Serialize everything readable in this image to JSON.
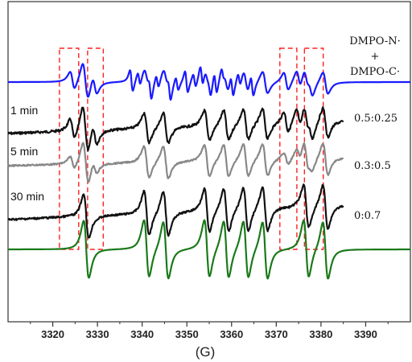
{
  "chart_data": {
    "type": "line",
    "title": "",
    "xlabel": "(G)",
    "ylabel": "",
    "xlim": [
      3310,
      3400
    ],
    "x_ticks": [
      3320,
      3330,
      3340,
      3350,
      3360,
      3370,
      3380,
      3390
    ],
    "grid": false,
    "legend": {
      "placement": "top-right",
      "lines": [
        "DMPO-N·",
        "+",
        "DMPO-C·"
      ]
    },
    "colors": {
      "sim_combined": "#1a1aff",
      "sample_black": "#111111",
      "sample_gray": "#888888",
      "sim_carbon": "#1a7a1a",
      "dashed_box": "#ff2020"
    },
    "series": [
      {
        "name": "DMPO-N· + DMPO-C·",
        "kind": "simulation",
        "label": "",
        "ratio": "",
        "x_start": 3310,
        "x_end": 3400
      },
      {
        "name": "",
        "kind": "experimental",
        "label": "1 min",
        "ratio": "0.5:0.25",
        "x_start": 3310,
        "x_end": 3385
      },
      {
        "name": "",
        "kind": "experimental",
        "label": "5 min",
        "ratio": "0.3:0.5",
        "x_start": 3310,
        "x_end": 3385
      },
      {
        "name": "",
        "kind": "experimental",
        "label": "30 min",
        "ratio": "0:0.7",
        "x_start": 3310,
        "x_end": 3385
      },
      {
        "name": "",
        "kind": "simulation",
        "label": "",
        "ratio": "",
        "x_start": 3310,
        "x_end": 3400
      }
    ],
    "nitrogen_lines_G": [
      3324.4,
      3327.1,
      3329.4,
      3372.2,
      3375.0,
      3377.7
    ],
    "carbon_lines_G": [
      3327.5,
      3341.0,
      3345.3,
      3354.5,
      3358.8,
      3363.2,
      3367.5,
      3376.7,
      3381.0
    ],
    "highlight_ranges_G": [
      [
        3321.5,
        3325.8
      ],
      [
        3327.8,
        3331.3
      ],
      [
        3370.8,
        3374.6
      ],
      [
        3376.3,
        3380.5
      ]
    ]
  }
}
